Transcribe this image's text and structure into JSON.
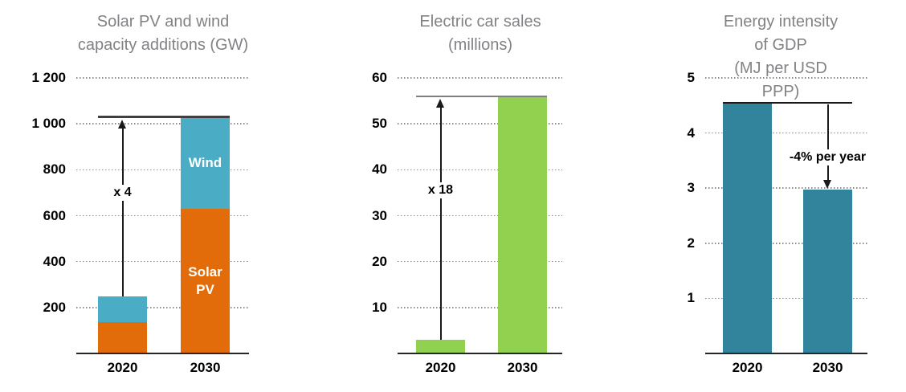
{
  "figure": {
    "background": "#FFFFFF",
    "title_color": "#808285",
    "text_color": "#000000",
    "axis_color": "#262626",
    "gridline_color": "#8C8C8C",
    "arrow_color": "#1A1A1A"
  },
  "chart_data": [
    {
      "id": "capacity-additions",
      "type": "bar",
      "stacked": true,
      "title": "Solar PV and wind\ncapacity additions (GW)",
      "categories": [
        "2020",
        "2030"
      ],
      "series": [
        {
          "name": "Solar PV",
          "color": "#E36C0A",
          "values": [
            135,
            630
          ]
        },
        {
          "name": "Wind",
          "color": "#4BACC6",
          "values": [
            115,
            400
          ]
        }
      ],
      "totals": [
        250,
        1030
      ],
      "ylim": [
        0,
        1200
      ],
      "yticks": [
        {
          "value": 200,
          "label": "200"
        },
        {
          "value": 400,
          "label": "400"
        },
        {
          "value": 600,
          "label": "600"
        },
        {
          "value": 800,
          "label": "800"
        },
        {
          "value": 1000,
          "label": "1 000"
        },
        {
          "value": 1200,
          "label": "1 200"
        }
      ],
      "grid": "horizontal-dotted",
      "legend": "labels-inside-bars",
      "segment_labels": [
        {
          "text": "Wind",
          "series_index": 1,
          "category_index": 1
        },
        {
          "text": "Solar\nPV",
          "series_index": 0,
          "category_index": 1
        }
      ],
      "annotation": {
        "label": "x 4",
        "reference_line": {
          "value": 1030,
          "color": "#404040"
        },
        "arrow": {
          "direction": "up",
          "at_category_index": 0,
          "from_value": 250,
          "to_value": 1030
        },
        "label_at_value": 700
      }
    },
    {
      "id": "electric-car-sales",
      "type": "bar",
      "stacked": false,
      "title": "Electric car sales\n(millions)",
      "categories": [
        "2020",
        "2030"
      ],
      "series": [
        {
          "name": "Electric car sales",
          "color": "#92D050",
          "values": [
            3,
            56
          ]
        }
      ],
      "ylim": [
        0,
        60
      ],
      "yticks": [
        {
          "value": 10,
          "label": "10"
        },
        {
          "value": 20,
          "label": "20"
        },
        {
          "value": 30,
          "label": "30"
        },
        {
          "value": 40,
          "label": "40"
        },
        {
          "value": 50,
          "label": "50"
        },
        {
          "value": 60,
          "label": "60"
        }
      ],
      "grid": "horizontal-dotted",
      "annotation": {
        "label": "x 18",
        "reference_line": {
          "value": 56,
          "color": "#7F7F7F"
        },
        "arrow": {
          "direction": "up",
          "at_category_index": 0,
          "from_value": 3,
          "to_value": 56
        },
        "label_at_value": 35.5
      }
    },
    {
      "id": "energy-intensity",
      "type": "bar",
      "stacked": false,
      "title": "Energy intensity of GDP\n(MJ per USD PPP)",
      "categories": [
        "2020",
        "2030"
      ],
      "series": [
        {
          "name": "Energy intensity of GDP",
          "color": "#31849B",
          "values": [
            4.55,
            2.97
          ]
        }
      ],
      "ylim": [
        0,
        5
      ],
      "yticks": [
        {
          "value": 1,
          "label": "1"
        },
        {
          "value": 2,
          "label": "2"
        },
        {
          "value": 3,
          "label": "3"
        },
        {
          "value": 4,
          "label": "4"
        },
        {
          "value": 5,
          "label": "5"
        }
      ],
      "grid": "horizontal-dotted",
      "annotation": {
        "label": "-4% per year",
        "reference_line": {
          "value": 4.55,
          "color": "#1A1A1A"
        },
        "arrow": {
          "direction": "down",
          "at_category_index": 1,
          "from_value": 4.55,
          "to_value": 2.97
        },
        "label_at_value": 3.55
      }
    }
  ]
}
